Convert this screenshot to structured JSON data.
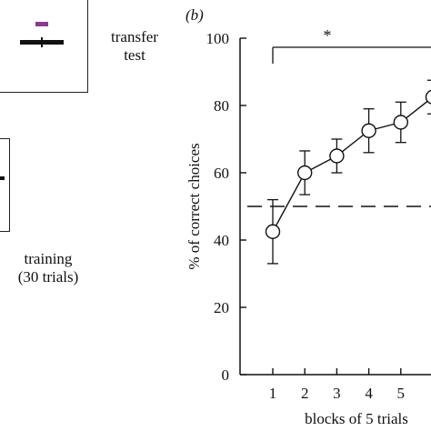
{
  "panel_a": {
    "transfer_label_line1": "transfer",
    "transfer_label_line2": "test",
    "training_label_line1": "training",
    "training_label_line2": "(30 trials)",
    "stimulus_color": "#8b3a8f"
  },
  "panel_b": {
    "panel_label": "(b)",
    "significance_mark": "*"
  },
  "chart_data": {
    "type": "line",
    "xlabel": "blocks of 5 trials",
    "ylabel": "% of correct choices",
    "x": [
      1,
      2,
      3,
      4,
      5,
      6
    ],
    "x_tick_labels": [
      "1",
      "2",
      "3",
      "4",
      "5"
    ],
    "y_ticks": [
      0,
      20,
      40,
      60,
      80,
      100
    ],
    "ylim": [
      0,
      100
    ],
    "xlim": [
      0.2,
      6.0
    ],
    "series": [
      {
        "values": [
          42.5,
          60,
          65,
          72.5,
          75,
          82.5
        ],
        "error": [
          9.5,
          6.5,
          5,
          6.5,
          6,
          5
        ]
      }
    ],
    "chance_level": 50,
    "significance_span": [
      1,
      6
    ],
    "grid": false
  }
}
